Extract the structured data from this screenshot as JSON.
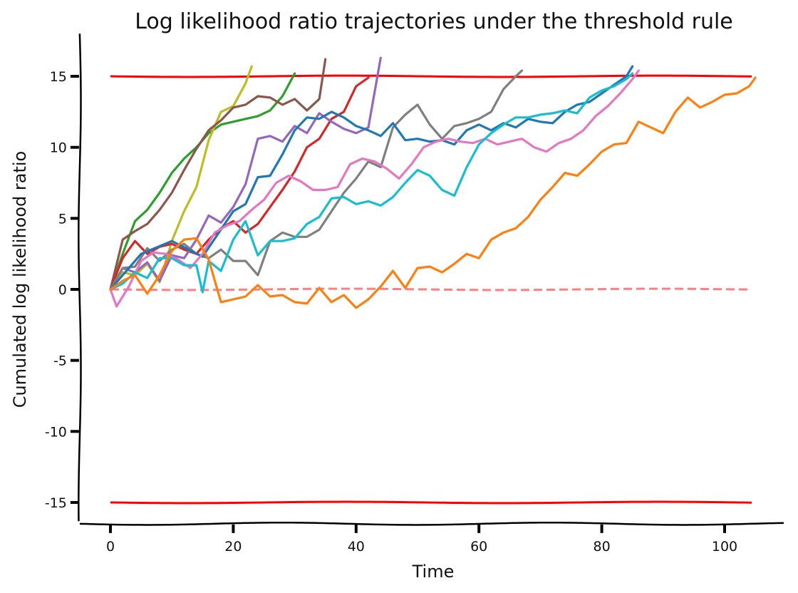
{
  "chart_data": {
    "type": "line",
    "title": "Log likelihood ratio trajectories under the threshold rule",
    "xlabel": "Time",
    "ylabel": "Cumulated log likelihood ratio",
    "xlim": [
      -5,
      110
    ],
    "ylim": [
      -16.5,
      18
    ],
    "xticks": [
      0,
      20,
      40,
      60,
      80,
      100
    ],
    "yticks": [
      15,
      10,
      5,
      0,
      -5,
      -10,
      -15
    ],
    "xtick_labels": [
      "0",
      "20",
      "40",
      "60",
      "80",
      "100"
    ],
    "ytick_labels": [
      "15",
      "10",
      "5",
      "0",
      "-5",
      "-10",
      "-15"
    ],
    "grid": false,
    "legend": "none",
    "thresholds": [
      {
        "y": 15,
        "x": [
          0,
          105
        ],
        "color": "#ff0000",
        "style": "solid"
      },
      {
        "y": -15,
        "x": [
          0,
          105
        ],
        "color": "#ff0000",
        "style": "solid"
      },
      {
        "y": 0,
        "x": [
          0,
          105
        ],
        "color": "#ff7f7f",
        "style": "dashed"
      }
    ],
    "series": [
      {
        "color": "#2ca02c",
        "x": [
          0,
          2,
          4,
          6,
          8,
          10,
          12,
          14,
          16,
          18,
          20,
          22,
          24,
          26,
          28,
          30
        ],
        "y": [
          0,
          2.5,
          4.8,
          5.6,
          6.8,
          8.2,
          9.2,
          10,
          11,
          11.6,
          11.8,
          12,
          12.2,
          12.6,
          13.6,
          15.2
        ]
      },
      {
        "color": "#bcbd22",
        "x": [
          0,
          2,
          4,
          6,
          8,
          10,
          12,
          14,
          16,
          18,
          20,
          22,
          23
        ],
        "y": [
          0,
          1.2,
          1,
          1.8,
          0.5,
          3.4,
          5.5,
          7.2,
          10.5,
          12.5,
          12.9,
          14.5,
          15.7
        ]
      },
      {
        "color": "#8c564b",
        "x": [
          0,
          2,
          4,
          6,
          8,
          10,
          12,
          14,
          16,
          18,
          20,
          22,
          24,
          26,
          28,
          30,
          32,
          34,
          35
        ],
        "y": [
          0,
          3.5,
          4.1,
          4.6,
          5.6,
          6.8,
          8.4,
          9.9,
          11.2,
          11.9,
          12.8,
          13,
          13.6,
          13.5,
          13,
          13.4,
          12.6,
          13.4,
          16.2
        ]
      },
      {
        "color": "#d62728",
        "x": [
          0,
          2,
          4,
          6,
          8,
          10,
          12,
          14,
          16,
          18,
          20,
          22,
          24,
          26,
          28,
          30,
          32,
          34,
          36,
          38,
          40,
          42
        ],
        "y": [
          0,
          2.2,
          3.4,
          2.5,
          3,
          3.2,
          2.8,
          2.5,
          3.5,
          4.3,
          4.8,
          4,
          4.6,
          5.8,
          7,
          8.3,
          10,
          10.6,
          12,
          12.5,
          14.3,
          14.9
        ]
      },
      {
        "color": "#9467bd",
        "x": [
          0,
          2,
          4,
          6,
          8,
          10,
          12,
          14,
          16,
          18,
          20,
          22,
          24,
          26,
          28,
          30,
          32,
          34,
          36,
          38,
          40,
          42,
          44
        ],
        "y": [
          0,
          1.5,
          1.2,
          1.9,
          0.6,
          2.4,
          2.2,
          3.5,
          5.2,
          4.7,
          5.8,
          7.4,
          10.6,
          10.8,
          10.4,
          11.5,
          11,
          12.4,
          11.8,
          11.3,
          11,
          11.4,
          16.3
        ]
      },
      {
        "color": "#7f7f7f",
        "x": [
          0,
          2,
          4,
          6,
          8,
          10,
          12,
          14,
          16,
          18,
          20,
          22,
          24,
          26,
          28,
          30,
          32,
          34,
          36,
          38,
          40,
          42,
          44,
          46,
          48,
          50,
          52,
          54,
          56,
          58,
          60,
          62,
          64,
          66,
          67
        ],
        "y": [
          0,
          1.5,
          1.6,
          2.9,
          2,
          2.8,
          3.2,
          2.5,
          2.2,
          2.8,
          2,
          2,
          1,
          3.4,
          4,
          3.7,
          3.7,
          4.2,
          5.5,
          6.8,
          7.8,
          9,
          8.6,
          11.4,
          12.3,
          13,
          11.6,
          10.6,
          11.5,
          11.7,
          12,
          12.5,
          14.1,
          15,
          15.4
        ]
      },
      {
        "color": "#1f77b4",
        "x": [
          0,
          5,
          10,
          15,
          20,
          22,
          24,
          26,
          28,
          30,
          32,
          34,
          36,
          38,
          40,
          42,
          44,
          46,
          48,
          50,
          52,
          54,
          56,
          58,
          60,
          62,
          64,
          66,
          68,
          70,
          72,
          74,
          76,
          78,
          80,
          82,
          84,
          85
        ],
        "y": [
          0,
          2.5,
          3.4,
          2.3,
          5.5,
          6,
          7.9,
          8,
          9.5,
          11.2,
          12.1,
          12,
          12.5,
          12.1,
          11.5,
          11.2,
          10.8,
          11.7,
          10.5,
          10.6,
          10.4,
          10.5,
          10.2,
          11.2,
          11.6,
          11.2,
          11.7,
          11.4,
          12,
          11.8,
          11.7,
          12.5,
          13,
          13.2,
          13.8,
          14.4,
          15,
          15.7
        ]
      },
      {
        "color": "#e377c2",
        "x": [
          0,
          1,
          3,
          5,
          7,
          9,
          11,
          13,
          15,
          17,
          19,
          21,
          23,
          25,
          27,
          29,
          31,
          33,
          35,
          37,
          39,
          41,
          43,
          45,
          47,
          49,
          51,
          53,
          55,
          57,
          59,
          61,
          63,
          65,
          67,
          69,
          71,
          73,
          75,
          77,
          79,
          81,
          83,
          85,
          86
        ],
        "y": [
          0,
          -1.2,
          0.2,
          2,
          2.6,
          2.5,
          2.1,
          1.5,
          2.5,
          4,
          4.5,
          4.8,
          5.6,
          6.3,
          7.5,
          8,
          7.6,
          7,
          7,
          7.2,
          8.8,
          9.2,
          9,
          8.5,
          7.8,
          8.8,
          10,
          10.4,
          10.6,
          10.4,
          10.3,
          10.6,
          10.2,
          10.4,
          10.6,
          10,
          9.7,
          10.3,
          10.6,
          11.2,
          12.2,
          12.9,
          13.8,
          14.8,
          15.4
        ]
      },
      {
        "color": "#17becf",
        "x": [
          0,
          2,
          4,
          6,
          8,
          10,
          12,
          14,
          15,
          16,
          18,
          20,
          22,
          24,
          26,
          28,
          30,
          32,
          34,
          36,
          38,
          40,
          42,
          44,
          46,
          48,
          50,
          52,
          54,
          56,
          58,
          60,
          62,
          64,
          66,
          68,
          70,
          72,
          74,
          76,
          78,
          80,
          82,
          84,
          85
        ],
        "y": [
          0,
          0.4,
          1.2,
          0.8,
          2.2,
          2.2,
          1.7,
          1.7,
          -0.2,
          2,
          1.3,
          3.5,
          4.8,
          2.4,
          3.4,
          3.4,
          3.6,
          4.6,
          5.1,
          6.4,
          6.5,
          6,
          6.2,
          5.9,
          6.5,
          7.5,
          8.4,
          8,
          7,
          6.6,
          8.6,
          10.2,
          11,
          11.6,
          12.1,
          12.1,
          12.3,
          12.4,
          12.6,
          12.4,
          13.5,
          14,
          14.3,
          14.8,
          15.2
        ]
      },
      {
        "color": "#ff7f0e",
        "x": [
          0,
          2,
          4,
          6,
          8,
          10,
          12,
          14,
          16,
          18,
          20,
          22,
          24,
          26,
          28,
          30,
          32,
          34,
          36,
          38,
          40,
          42,
          44,
          46,
          48,
          50,
          52,
          54,
          56,
          58,
          60,
          62,
          64,
          66,
          68,
          70,
          72,
          74,
          76,
          78,
          80,
          82,
          84,
          86,
          88,
          90,
          92,
          94,
          96,
          98,
          100,
          102,
          104,
          105
        ],
        "y": [
          0,
          0.6,
          1,
          -0.3,
          1,
          2.7,
          3.5,
          3.6,
          2.1,
          -0.9,
          -0.7,
          -0.5,
          0.3,
          -0.5,
          -0.4,
          -0.9,
          -1,
          0.1,
          -0.9,
          -0.4,
          -1.3,
          -0.7,
          0.2,
          1.3,
          0.1,
          1.5,
          1.6,
          1.2,
          1.8,
          2.5,
          2.2,
          3.5,
          4,
          4.3,
          5.1,
          6.3,
          7.2,
          8.2,
          8,
          8.8,
          9.7,
          10.2,
          10.3,
          11.8,
          11.4,
          11,
          12.5,
          13.5,
          12.8,
          13.2,
          13.7,
          13.8,
          14.3,
          14.9
        ]
      }
    ]
  }
}
